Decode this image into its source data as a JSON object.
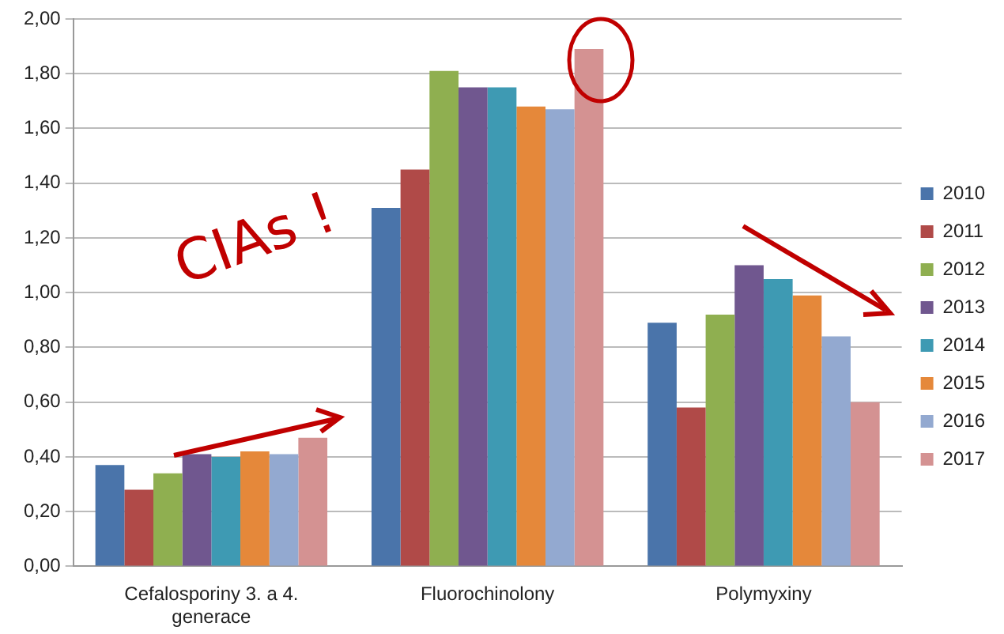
{
  "chart_data": {
    "type": "bar",
    "categories": [
      "Cefalosporiny 3. a 4. generace",
      "Fluorochinolony",
      "Polymyxiny"
    ],
    "series": [
      {
        "name": "2010",
        "color": "#4a74aa",
        "values": [
          0.37,
          1.31,
          0.89
        ]
      },
      {
        "name": "2011",
        "color": "#b04a48",
        "values": [
          0.28,
          1.45,
          0.58
        ]
      },
      {
        "name": "2012",
        "color": "#8faf50",
        "values": [
          0.34,
          1.81,
          0.92
        ]
      },
      {
        "name": "2013",
        "color": "#70578f",
        "values": [
          0.41,
          1.75,
          1.1
        ]
      },
      {
        "name": "2014",
        "color": "#3e9ab3",
        "values": [
          0.4,
          1.75,
          1.05
        ]
      },
      {
        "name": "2015",
        "color": "#e5883a",
        "values": [
          0.42,
          1.68,
          0.99
        ]
      },
      {
        "name": "2016",
        "color": "#93a9d0",
        "values": [
          0.41,
          1.67,
          0.84
        ]
      },
      {
        "name": "2017",
        "color": "#d49292",
        "values": [
          0.47,
          1.89,
          0.6
        ]
      }
    ],
    "ylim": [
      0,
      2
    ],
    "yticks": [
      {
        "value": 0,
        "label": "0,00"
      },
      {
        "value": 0.2,
        "label": "0,20"
      },
      {
        "value": 0.4,
        "label": "0,40"
      },
      {
        "value": 0.6,
        "label": "0,60"
      },
      {
        "value": 0.8,
        "label": "0,80"
      },
      {
        "value": 1,
        "label": "1,00"
      },
      {
        "value": 1.2,
        "label": "1,20"
      },
      {
        "value": 1.4,
        "label": "1,40"
      },
      {
        "value": 1.6,
        "label": "1,60"
      },
      {
        "value": 1.8,
        "label": "1,80"
      },
      {
        "value": 2,
        "label": "2,00"
      }
    ],
    "grid": "y",
    "legend": "right",
    "annotations": [
      "CIAs !"
    ]
  }
}
